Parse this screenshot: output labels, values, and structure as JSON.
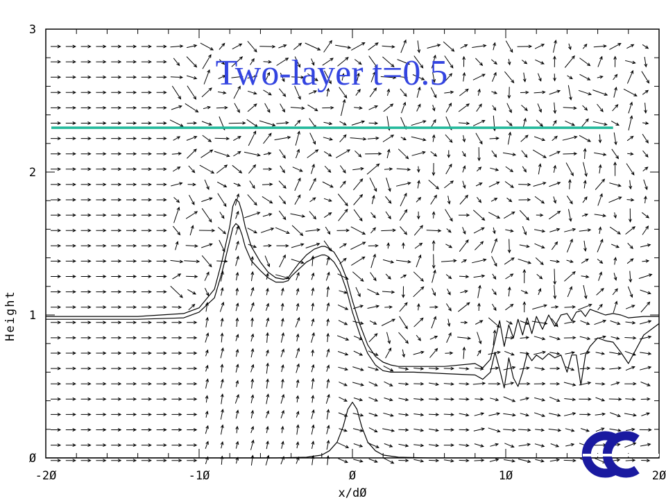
{
  "chart_data": {
    "type": "line",
    "title": "Two-layer t=0.5",
    "xlabel": "x/dØ",
    "ylabel": "Height",
    "xlim": [
      -20,
      20
    ],
    "ylim": [
      0,
      3
    ],
    "x_ticks": [
      -20,
      -10,
      0,
      10,
      20
    ],
    "x_tick_labels": [
      "-2Ø",
      "-1Ø",
      "Ø",
      "1Ø",
      "2Ø"
    ],
    "y_ticks": [
      0,
      1,
      2,
      3
    ],
    "y_tick_labels": [
      "Ø",
      "1",
      "2",
      "3"
    ],
    "grid": false,
    "colors": {
      "title": "#3344e0",
      "reference_line": "#20b89a",
      "lines": "#000000",
      "logo": "#1a1aa0"
    },
    "reference_line": {
      "y": 2.31,
      "x": [
        -20,
        17
      ]
    },
    "series": [
      {
        "x": [
          -20,
          -14,
          -11,
          -10,
          -9,
          -8.5,
          -8,
          -7.8,
          -7.6,
          -7.4,
          -7.2,
          -7,
          -6.6,
          -6,
          -5.5,
          -5,
          -4.5,
          -4.2,
          -4,
          -3.5,
          -3,
          -2.5,
          -2,
          -1.8,
          -1.6,
          -1.2,
          -0.8,
          -0.4,
          0,
          0.5,
          1,
          1.5,
          2,
          2.5,
          3,
          4,
          6,
          8,
          8.5,
          9,
          9.3,
          9.6,
          9.9,
          10.2,
          10.5,
          10.8,
          11.1,
          11.4,
          11.7,
          12,
          12.4,
          12.8,
          13.2,
          13.6,
          14,
          14.3,
          14.6,
          14.9,
          15.2,
          15.5,
          16,
          16.5,
          17,
          17.5,
          18,
          19,
          20
        ],
        "y": [
          0.99,
          0.99,
          1.01,
          1.05,
          1.18,
          1.38,
          1.62,
          1.76,
          1.81,
          1.79,
          1.72,
          1.62,
          1.48,
          1.37,
          1.3,
          1.26,
          1.25,
          1.26,
          1.29,
          1.36,
          1.42,
          1.46,
          1.48,
          1.48,
          1.47,
          1.44,
          1.37,
          1.26,
          1.1,
          0.93,
          0.79,
          0.71,
          0.67,
          0.65,
          0.64,
          0.64,
          0.64,
          0.66,
          0.63,
          0.69,
          0.82,
          0.96,
          0.78,
          0.93,
          0.84,
          0.97,
          0.86,
          0.98,
          0.87,
          0.99,
          0.9,
          1,
          0.92,
          1,
          1.01,
          0.96,
          1.02,
          1.03,
          0.99,
          1.04,
          1.02,
          1,
          1.01,
          1,
          0.98,
          0.99,
          0.99
        ]
      },
      {
        "x": [
          -20,
          -14,
          -11,
          -10,
          -9,
          -8.5,
          -8,
          -7.8,
          -7.6,
          -7.4,
          -7.2,
          -7,
          -6.6,
          -6,
          -5.5,
          -5,
          -4.5,
          -4.2,
          -4,
          -3.5,
          -3,
          -2.5,
          -2,
          -1.8,
          -1.6,
          -1.2,
          -0.8,
          -0.4,
          0,
          0.5,
          1,
          1.5,
          2,
          2.5,
          3,
          4,
          6,
          8,
          8.5,
          9,
          9.3,
          9.6,
          9.9,
          10.2,
          10.5,
          10.8,
          11.1,
          11.4,
          11.7,
          12,
          12.4,
          12.8,
          13.2,
          13.6,
          14,
          14.3,
          14.6,
          14.9,
          15.2,
          15.5,
          16,
          16.5,
          17,
          17.5,
          18,
          19,
          20
        ],
        "y": [
          0.97,
          0.97,
          0.98,
          1.02,
          1.12,
          1.3,
          1.52,
          1.61,
          1.64,
          1.62,
          1.56,
          1.48,
          1.38,
          1.31,
          1.26,
          1.23,
          1.23,
          1.24,
          1.27,
          1.32,
          1.37,
          1.4,
          1.42,
          1.42,
          1.41,
          1.37,
          1.3,
          1.18,
          1.02,
          0.86,
          0.73,
          0.65,
          0.61,
          0.6,
          0.6,
          0.6,
          0.59,
          0.58,
          0.55,
          0.6,
          0.74,
          0.62,
          0.49,
          0.7,
          0.56,
          0.5,
          0.6,
          0.73,
          0.68,
          0.72,
          0.69,
          0.73,
          0.7,
          0.72,
          0.6,
          0.72,
          0.72,
          0.51,
          0.72,
          0.78,
          0.84,
          0.82,
          0.81,
          0.74,
          0.66,
          0.86,
          0.94
        ]
      },
      {
        "x": [
          -20,
          -5,
          -3,
          -2,
          -1.5,
          -1,
          -0.6,
          -0.3,
          0,
          0.3,
          0.6,
          1,
          1.5,
          2,
          3,
          5,
          20
        ],
        "y": [
          0,
          0,
          0.005,
          0.02,
          0.05,
          0.11,
          0.22,
          0.34,
          0.39,
          0.34,
          0.22,
          0.11,
          0.05,
          0.02,
          0.005,
          0,
          0
        ]
      }
    ]
  }
}
